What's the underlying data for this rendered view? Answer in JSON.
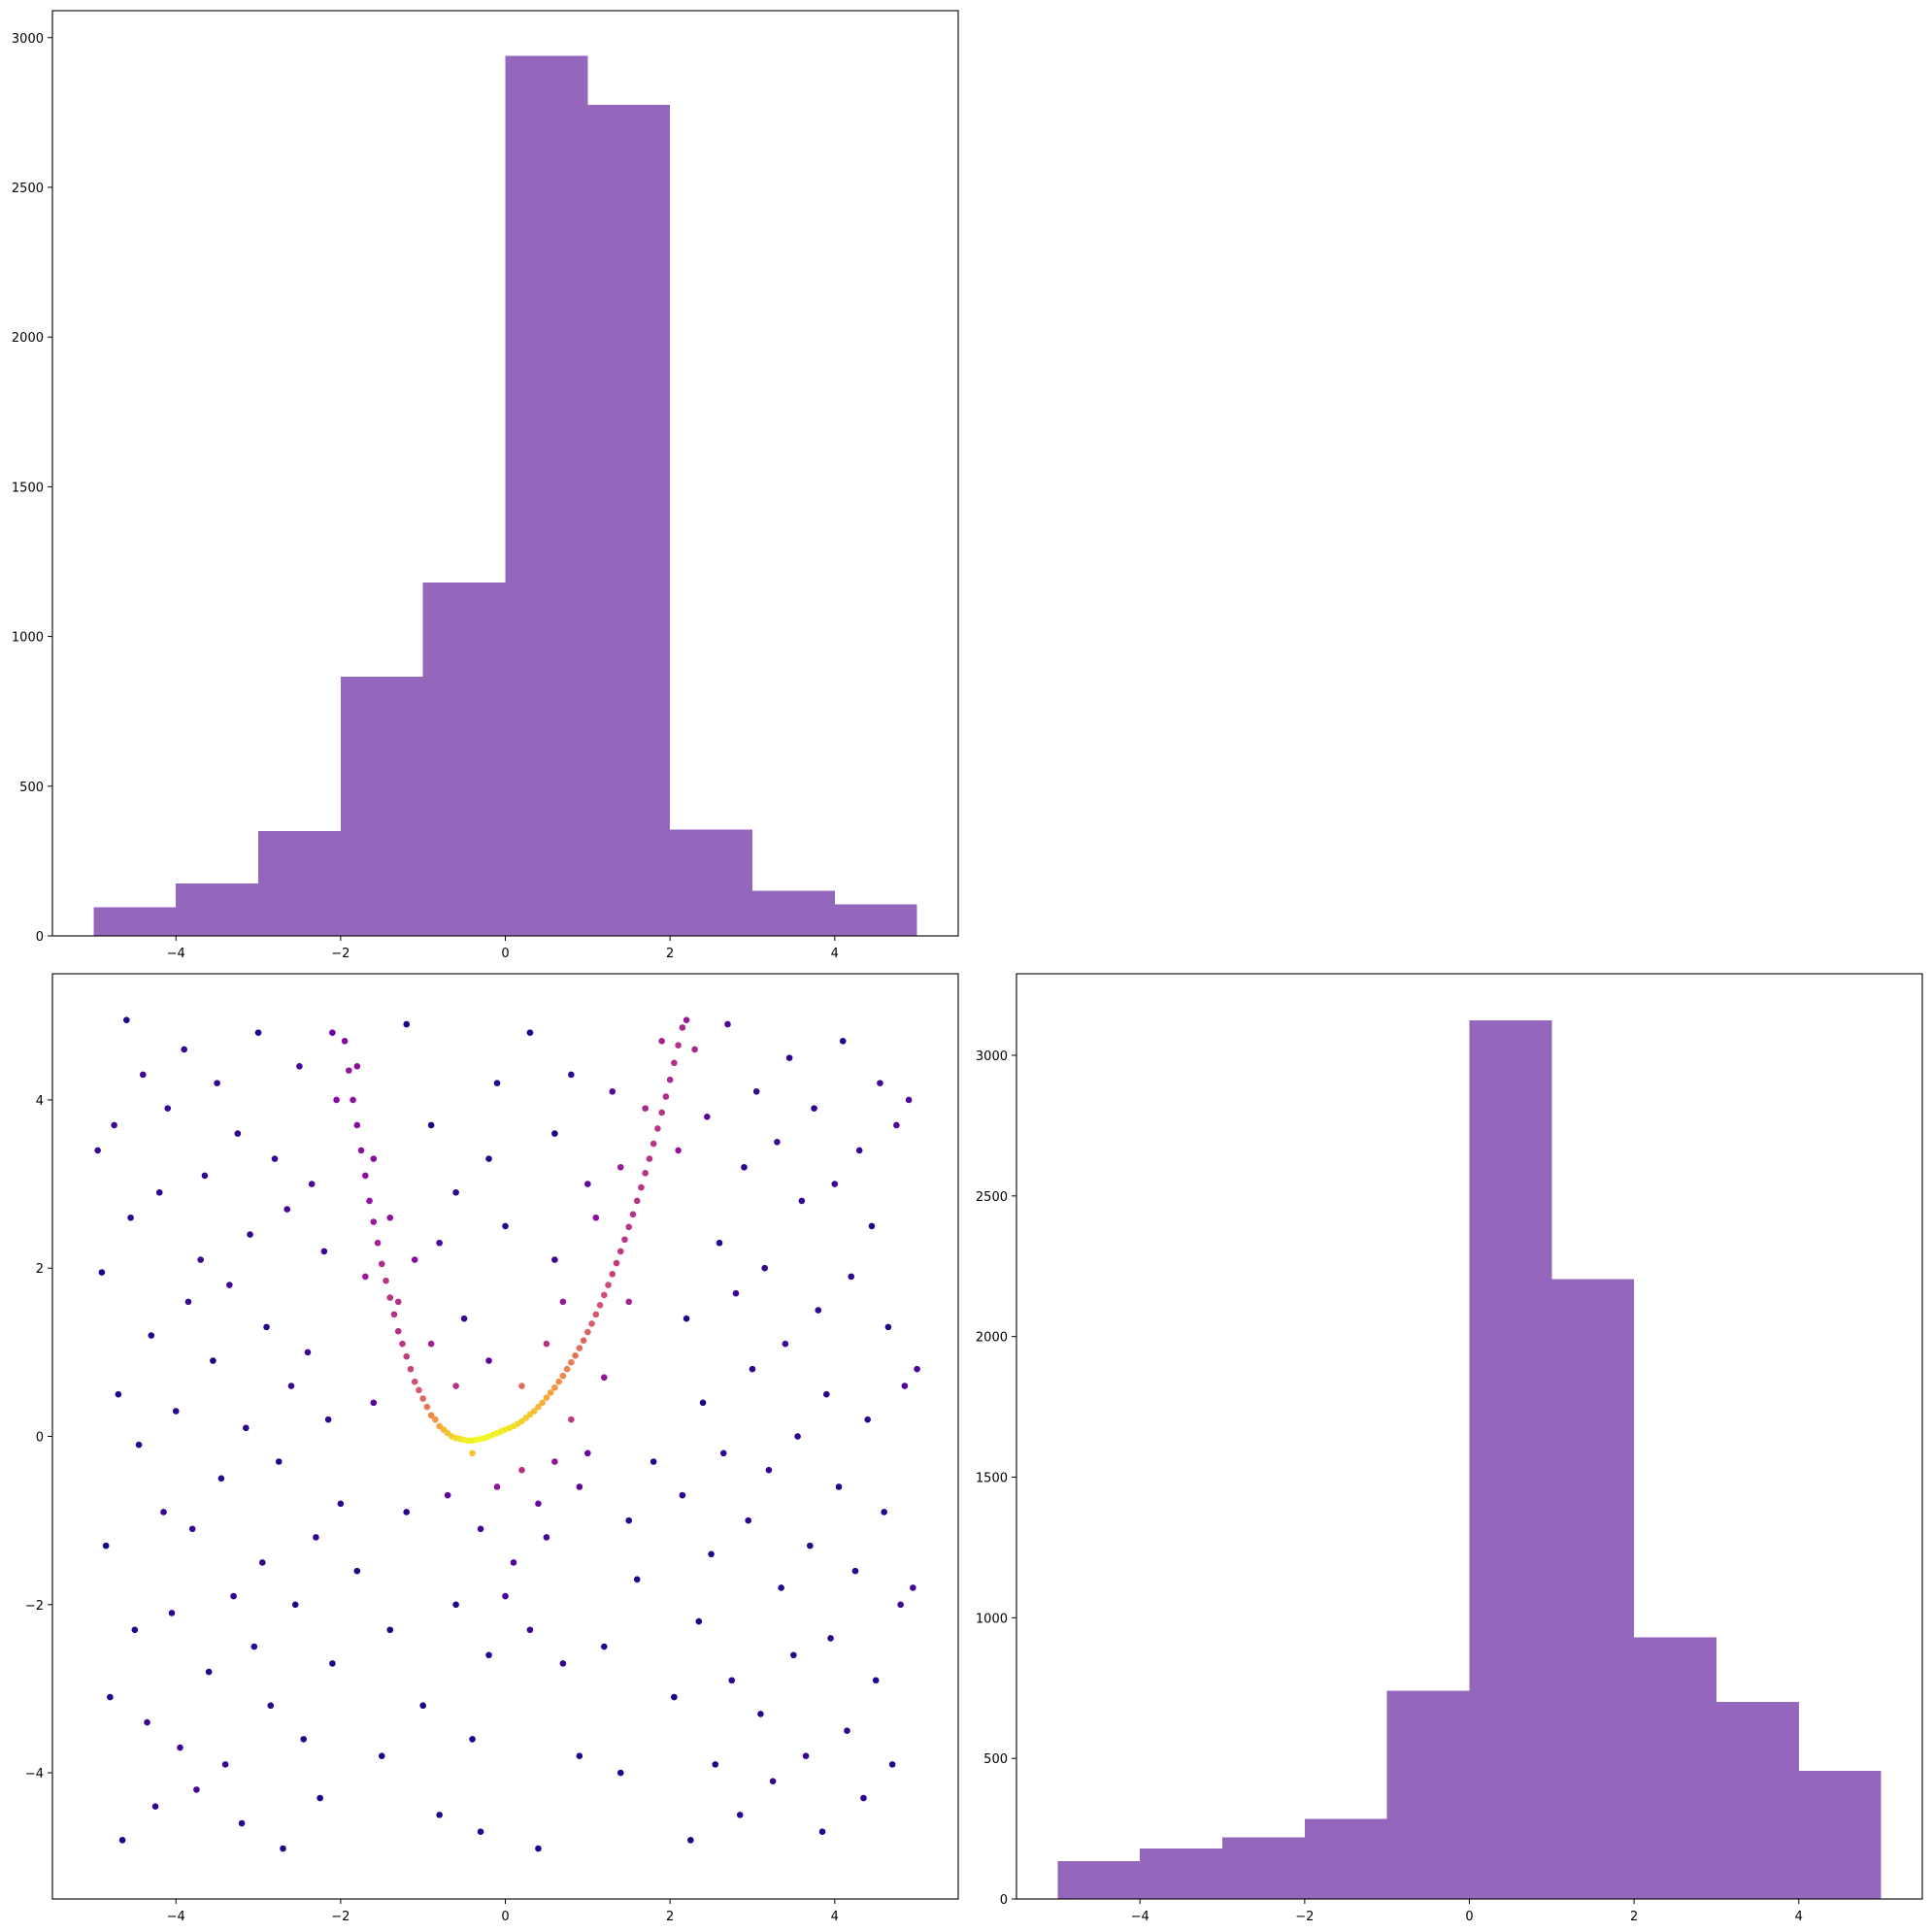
{
  "colors": {
    "bar_fill": "#9467bd",
    "scatter_colormap": "plasma",
    "axes_edge": "#000000",
    "background": "#ffffff"
  },
  "chart_data": [
    {
      "id": "hist_x",
      "position": "top-left",
      "type": "bar",
      "title": "",
      "xlabel": "",
      "ylabel": "",
      "bin_edges": [
        -5,
        -4,
        -3,
        -2,
        -1,
        0,
        1,
        2,
        3,
        4,
        5
      ],
      "values": [
        95,
        175,
        350,
        865,
        1180,
        2940,
        2775,
        355,
        150,
        105
      ],
      "xlim": [
        -5.5,
        5.5
      ],
      "ylim": [
        0,
        3090
      ],
      "x_ticks": [
        -4,
        -2,
        0,
        2,
        4
      ],
      "x_tick_labels": [
        "−4",
        "−2",
        "0",
        "2",
        "4"
      ],
      "y_ticks": [
        0,
        500,
        1000,
        1500,
        2000,
        2500,
        3000
      ],
      "y_tick_labels": [
        "0",
        "500",
        "1000",
        "1500",
        "2000",
        "2500",
        "3000"
      ],
      "grid": false
    },
    {
      "id": "scatter_xy",
      "position": "bottom-left",
      "type": "scatter",
      "title": "",
      "xlabel": "",
      "ylabel": "",
      "color_encoding": "point density (plasma colormap)",
      "xlim": [
        -5.5,
        5.5
      ],
      "ylim": [
        -5.5,
        5.5
      ],
      "x_ticks": [
        -4,
        -2,
        0,
        2,
        4
      ],
      "x_tick_labels": [
        "−4",
        "−2",
        "0",
        "2",
        "4"
      ],
      "y_ticks": [
        -4,
        -2,
        0,
        2,
        4
      ],
      "y_tick_labels": [
        "−4",
        "−2",
        "0",
        "2",
        "4"
      ],
      "grid": false,
      "points": [
        [
          -4.95,
          3.4
        ],
        [
          -4.9,
          1.95
        ],
        [
          -4.85,
          -1.3
        ],
        [
          -4.8,
          -3.1
        ],
        [
          -4.75,
          3.7
        ],
        [
          -4.7,
          0.5
        ],
        [
          -4.65,
          -4.8
        ],
        [
          -4.6,
          4.95
        ],
        [
          -4.55,
          2.6
        ],
        [
          -4.5,
          -2.3
        ],
        [
          -4.45,
          -0.1
        ],
        [
          -4.4,
          4.3
        ],
        [
          -4.35,
          -3.4
        ],
        [
          -4.3,
          1.2
        ],
        [
          -4.25,
          -4.4
        ],
        [
          -4.2,
          2.9
        ],
        [
          -4.15,
          -0.9
        ],
        [
          -4.1,
          3.9
        ],
        [
          -4.05,
          -2.1
        ],
        [
          -4.0,
          0.3
        ],
        [
          -3.95,
          -3.7
        ],
        [
          -3.9,
          4.6
        ],
        [
          -3.85,
          1.6
        ],
        [
          -3.8,
          -1.1
        ],
        [
          -3.75,
          -4.2
        ],
        [
          -3.7,
          2.1
        ],
        [
          -3.65,
          3.1
        ],
        [
          -3.6,
          -2.8
        ],
        [
          -3.55,
          0.9
        ],
        [
          -3.5,
          4.2
        ],
        [
          -3.45,
          -0.5
        ],
        [
          -3.4,
          -3.9
        ],
        [
          -3.35,
          1.8
        ],
        [
          -3.3,
          -1.9
        ],
        [
          -3.25,
          3.6
        ],
        [
          -3.2,
          -4.6
        ],
        [
          -3.15,
          0.1
        ],
        [
          -3.1,
          2.4
        ],
        [
          -3.05,
          -2.5
        ],
        [
          -3.0,
          4.8
        ],
        [
          -2.95,
          -1.5
        ],
        [
          -2.9,
          1.3
        ],
        [
          -2.85,
          -3.2
        ],
        [
          -2.8,
          3.3
        ],
        [
          -2.75,
          -0.3
        ],
        [
          -2.7,
          -4.9
        ],
        [
          -2.65,
          2.7
        ],
        [
          -2.6,
          0.6
        ],
        [
          -2.55,
          -2.0
        ],
        [
          -2.5,
          4.4
        ],
        [
          -2.45,
          -3.6
        ],
        [
          -2.4,
          1.0
        ],
        [
          -2.35,
          3.0
        ],
        [
          -2.3,
          -1.2
        ],
        [
          -2.25,
          -4.3
        ],
        [
          -2.2,
          2.2
        ],
        [
          -2.15,
          0.2
        ],
        [
          -2.1,
          -2.7
        ],
        [
          -2.05,
          4.0
        ],
        [
          -2.0,
          -0.8
        ],
        [
          -1.95,
          4.7
        ],
        [
          -1.9,
          4.35
        ],
        [
          -1.85,
          4.0
        ],
        [
          -1.8,
          3.7
        ],
        [
          -1.75,
          3.4
        ],
        [
          -1.7,
          3.1
        ],
        [
          -1.65,
          2.8
        ],
        [
          -1.6,
          2.55
        ],
        [
          -1.55,
          2.3
        ],
        [
          -1.5,
          2.05
        ],
        [
          -1.45,
          1.85
        ],
        [
          -1.4,
          1.65
        ],
        [
          -1.35,
          1.45
        ],
        [
          -1.3,
          1.25
        ],
        [
          -1.25,
          1.1
        ],
        [
          -1.2,
          0.95
        ],
        [
          -1.15,
          0.8
        ],
        [
          -1.1,
          0.65
        ],
        [
          -1.05,
          0.55
        ],
        [
          -1.0,
          0.45
        ],
        [
          -0.95,
          0.35
        ],
        [
          -0.9,
          0.25
        ],
        [
          -0.85,
          0.2
        ],
        [
          -0.8,
          0.12
        ],
        [
          -0.75,
          0.08
        ],
        [
          -0.7,
          0.04
        ],
        [
          -0.65,
          0.0
        ],
        [
          -0.6,
          -0.02
        ],
        [
          -0.55,
          -0.03
        ],
        [
          -0.5,
          -0.04
        ],
        [
          -0.45,
          -0.05
        ],
        [
          -0.4,
          -0.05
        ],
        [
          -0.35,
          -0.04
        ],
        [
          -0.3,
          -0.03
        ],
        [
          -0.25,
          -0.02
        ],
        [
          -0.2,
          0.0
        ],
        [
          -0.15,
          0.02
        ],
        [
          -0.1,
          0.04
        ],
        [
          -0.05,
          0.06
        ],
        [
          0.0,
          0.08
        ],
        [
          0.05,
          0.1
        ],
        [
          0.1,
          0.12
        ],
        [
          0.15,
          0.15
        ],
        [
          0.2,
          0.18
        ],
        [
          0.25,
          0.22
        ],
        [
          0.3,
          0.26
        ],
        [
          0.35,
          0.3
        ],
        [
          0.4,
          0.35
        ],
        [
          0.45,
          0.4
        ],
        [
          0.5,
          0.46
        ],
        [
          0.55,
          0.52
        ],
        [
          0.6,
          0.58
        ],
        [
          0.65,
          0.65
        ],
        [
          0.7,
          0.72
        ],
        [
          0.75,
          0.8
        ],
        [
          0.8,
          0.88
        ],
        [
          0.85,
          0.96
        ],
        [
          0.9,
          1.05
        ],
        [
          0.95,
          1.14
        ],
        [
          1.0,
          1.24
        ],
        [
          1.05,
          1.34
        ],
        [
          1.1,
          1.45
        ],
        [
          1.15,
          1.56
        ],
        [
          1.2,
          1.68
        ],
        [
          1.25,
          1.8
        ],
        [
          1.3,
          1.93
        ],
        [
          1.35,
          2.06
        ],
        [
          1.4,
          2.2
        ],
        [
          1.45,
          2.34
        ],
        [
          1.5,
          2.49
        ],
        [
          1.55,
          2.64
        ],
        [
          1.6,
          2.8
        ],
        [
          1.65,
          2.96
        ],
        [
          1.7,
          3.13
        ],
        [
          1.75,
          3.3
        ],
        [
          1.8,
          3.48
        ],
        [
          1.85,
          3.66
        ],
        [
          1.9,
          3.85
        ],
        [
          1.95,
          4.04
        ],
        [
          2.0,
          4.24
        ],
        [
          2.05,
          4.44
        ],
        [
          2.1,
          4.65
        ],
        [
          2.15,
          4.86
        ],
        [
          0.2,
          -0.4
        ],
        [
          -0.1,
          -0.6
        ],
        [
          0.4,
          -0.8
        ],
        [
          -0.3,
          -1.1
        ],
        [
          0.1,
          -1.5
        ],
        [
          0.6,
          -0.3
        ],
        [
          -0.6,
          0.6
        ],
        [
          0.8,
          0.2
        ],
        [
          -0.9,
          1.1
        ],
        [
          1.2,
          0.7
        ],
        [
          -1.3,
          1.6
        ],
        [
          1.5,
          1.6
        ],
        [
          0.0,
          -1.9
        ],
        [
          0.3,
          -2.3
        ],
        [
          -0.2,
          -2.6
        ],
        [
          0.5,
          -1.2
        ],
        [
          -0.4,
          -0.2
        ],
        [
          0.9,
          -0.6
        ],
        [
          -0.7,
          -0.7
        ],
        [
          1.1,
          2.6
        ],
        [
          -1.1,
          2.1
        ],
        [
          1.7,
          3.9
        ],
        [
          -1.6,
          3.3
        ],
        [
          0.7,
          1.6
        ],
        [
          -0.5,
          1.4
        ],
        [
          1.4,
          3.2
        ],
        [
          -1.4,
          2.6
        ],
        [
          0.2,
          0.6
        ],
        [
          0.5,
          1.1
        ],
        [
          -0.2,
          0.9
        ],
        [
          0.6,
          2.1
        ],
        [
          -0.8,
          2.3
        ],
        [
          1.0,
          3.0
        ],
        [
          1.9,
          4.7
        ],
        [
          -1.8,
          4.4
        ],
        [
          2.2,
          4.95
        ],
        [
          -2.1,
          4.8
        ],
        [
          2.05,
          -3.1
        ],
        [
          2.1,
          3.4
        ],
        [
          2.15,
          -0.7
        ],
        [
          2.2,
          1.4
        ],
        [
          2.25,
          -4.8
        ],
        [
          2.3,
          4.6
        ],
        [
          2.35,
          -2.2
        ],
        [
          2.4,
          0.4
        ],
        [
          2.45,
          3.8
        ],
        [
          2.5,
          -1.4
        ],
        [
          2.55,
          -3.9
        ],
        [
          2.6,
          2.3
        ],
        [
          2.65,
          -0.2
        ],
        [
          2.7,
          4.9
        ],
        [
          2.75,
          -2.9
        ],
        [
          2.8,
          1.7
        ],
        [
          2.85,
          -4.5
        ],
        [
          2.9,
          3.2
        ],
        [
          2.95,
          -1.0
        ],
        [
          3.0,
          0.8
        ],
        [
          3.05,
          4.1
        ],
        [
          3.1,
          -3.3
        ],
        [
          3.15,
          2.0
        ],
        [
          3.2,
          -0.4
        ],
        [
          3.25,
          -4.1
        ],
        [
          3.3,
          3.5
        ],
        [
          3.35,
          -1.8
        ],
        [
          3.4,
          1.1
        ],
        [
          3.45,
          4.5
        ],
        [
          3.5,
          -2.6
        ],
        [
          3.55,
          0.0
        ],
        [
          3.6,
          2.8
        ],
        [
          3.65,
          -3.8
        ],
        [
          3.7,
          -1.3
        ],
        [
          3.75,
          3.9
        ],
        [
          3.8,
          1.5
        ],
        [
          3.85,
          -4.7
        ],
        [
          3.9,
          0.5
        ],
        [
          3.95,
          -2.4
        ],
        [
          4.0,
          3.0
        ],
        [
          4.05,
          -0.6
        ],
        [
          4.1,
          4.7
        ],
        [
          4.15,
          -3.5
        ],
        [
          4.2,
          1.9
        ],
        [
          4.25,
          -1.6
        ],
        [
          4.3,
          3.4
        ],
        [
          4.35,
          -4.3
        ],
        [
          4.4,
          0.2
        ],
        [
          4.45,
          2.5
        ],
        [
          4.5,
          -2.9
        ],
        [
          4.55,
          4.2
        ],
        [
          4.6,
          -0.9
        ],
        [
          4.65,
          1.3
        ],
        [
          4.7,
          -3.9
        ],
        [
          4.75,
          3.7
        ],
        [
          4.8,
          -2.0
        ],
        [
          4.85,
          0.6
        ],
        [
          4.9,
          4.0
        ],
        [
          4.95,
          -1.8
        ],
        [
          5.0,
          0.8
        ],
        [
          -1.0,
          -3.2
        ],
        [
          -1.2,
          -0.9
        ],
        [
          -1.4,
          -2.3
        ],
        [
          -1.6,
          0.4
        ],
        [
          -1.8,
          -1.6
        ],
        [
          -0.8,
          -4.5
        ],
        [
          -0.6,
          -2.0
        ],
        [
          -0.4,
          -3.6
        ],
        [
          1.2,
          -2.5
        ],
        [
          1.4,
          -4.0
        ],
        [
          1.6,
          -1.7
        ],
        [
          1.8,
          -0.3
        ],
        [
          0.9,
          -3.8
        ],
        [
          0.7,
          -2.7
        ],
        [
          -0.9,
          3.7
        ],
        [
          0.8,
          4.3
        ],
        [
          -0.2,
          3.3
        ],
        [
          0.3,
          4.8
        ],
        [
          -1.2,
          4.9
        ],
        [
          1.3,
          4.1
        ],
        [
          -0.6,
          2.9
        ],
        [
          0.6,
          3.6
        ],
        [
          -1.5,
          -3.8
        ],
        [
          1.5,
          -1.0
        ],
        [
          0.0,
          2.5
        ],
        [
          -0.1,
          4.2
        ],
        [
          0.4,
          -4.9
        ],
        [
          -0.3,
          -4.7
        ],
        [
          1.0,
          -0.2
        ],
        [
          -1.7,
          1.9
        ]
      ]
    },
    {
      "id": "hist_y",
      "position": "bottom-right",
      "type": "bar",
      "title": "",
      "xlabel": "",
      "ylabel": "",
      "bin_edges": [
        -5,
        -4,
        -3,
        -2,
        -1,
        0,
        1,
        2,
        3,
        4,
        5
      ],
      "values": [
        135,
        180,
        220,
        285,
        740,
        3125,
        2205,
        930,
        700,
        455
      ],
      "xlim": [
        -5.5,
        5.5
      ],
      "ylim": [
        0,
        3290
      ],
      "x_ticks": [
        -4,
        -2,
        0,
        2,
        4
      ],
      "x_tick_labels": [
        "−4",
        "−2",
        "0",
        "2",
        "4"
      ],
      "y_ticks": [
        0,
        500,
        1000,
        1500,
        2000,
        2500,
        3000
      ],
      "y_tick_labels": [
        "0",
        "500",
        "1000",
        "1500",
        "2000",
        "2500",
        "3000"
      ],
      "grid": false
    }
  ]
}
